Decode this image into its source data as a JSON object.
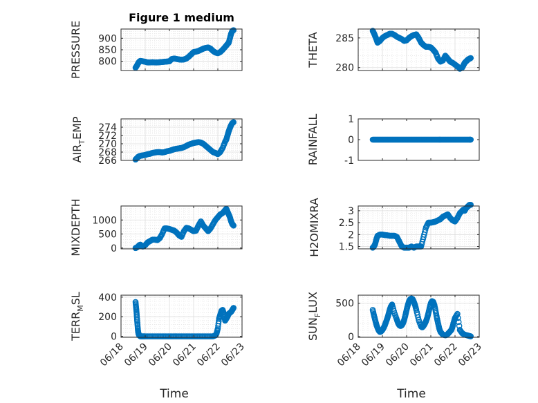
{
  "figure": {
    "xlabel": "Time"
  },
  "chart_data": [
    {
      "type": "scatter",
      "title": "Figure 1 medium",
      "ylabel": "PRESSURE",
      "ylabel_sub": "",
      "xlim": [
        "06/18",
        "06/23"
      ],
      "ylim": [
        760,
        940
      ],
      "yticks": [
        800,
        850,
        900
      ],
      "grid": true,
      "x": [
        18.6,
        18.65,
        18.7,
        18.75,
        18.8,
        18.9,
        19.0,
        19.1,
        19.2,
        19.3,
        19.4,
        19.5,
        19.6,
        19.7,
        19.8,
        19.9,
        20.0,
        20.1,
        20.2,
        20.3,
        20.4,
        20.5,
        20.6,
        20.7,
        20.8,
        20.9,
        21.0,
        21.1,
        21.2,
        21.3,
        21.4,
        21.5,
        21.6,
        21.7,
        21.8,
        21.9,
        22.0,
        22.1,
        22.2,
        22.3,
        22.35,
        22.4,
        22.45,
        22.5,
        22.55,
        22.6,
        22.65
      ],
      "y": [
        772,
        780,
        790,
        798,
        802,
        800,
        798,
        795,
        795,
        796,
        795,
        795,
        796,
        797,
        798,
        799,
        800,
        810,
        812,
        810,
        808,
        807,
        808,
        812,
        820,
        830,
        840,
        842,
        845,
        850,
        855,
        858,
        860,
        855,
        845,
        838,
        835,
        840,
        850,
        862,
        868,
        875,
        880,
        900,
        920,
        932,
        935
      ]
    },
    {
      "type": "scatter",
      "title": "",
      "ylabel": "THETA",
      "ylabel_sub": "",
      "xlim": [
        "06/18",
        "06/23"
      ],
      "ylim": [
        279.5,
        286.5
      ],
      "yticks": [
        280,
        285
      ],
      "grid": true,
      "x": [
        18.6,
        18.65,
        18.7,
        18.75,
        18.8,
        18.9,
        19.0,
        19.1,
        19.2,
        19.3,
        19.4,
        19.5,
        19.6,
        19.7,
        19.8,
        19.9,
        20.0,
        20.1,
        20.2,
        20.3,
        20.4,
        20.5,
        20.6,
        20.7,
        20.8,
        20.9,
        21.0,
        21.1,
        21.2,
        21.3,
        21.4,
        21.5,
        21.6,
        21.7,
        21.8,
        21.9,
        22.0,
        22.1,
        22.2,
        22.3,
        22.35,
        22.4,
        22.45,
        22.5,
        22.55,
        22.6,
        22.65
      ],
      "y": [
        286.2,
        285.8,
        285.3,
        284.8,
        284.2,
        284.5,
        285.0,
        285.3,
        285.5,
        285.7,
        285.7,
        285.5,
        285.2,
        285.0,
        284.8,
        284.5,
        284.6,
        285.0,
        285.3,
        285.5,
        285.6,
        285.0,
        284.2,
        283.8,
        283.5,
        283.5,
        283.4,
        283.0,
        282.5,
        281.5,
        281.0,
        281.2,
        282.0,
        281.5,
        281.0,
        280.8,
        280.5,
        280.2,
        279.8,
        280.0,
        280.4,
        280.8,
        281.0,
        281.2,
        281.4,
        281.5,
        281.6
      ]
    },
    {
      "type": "scatter",
      "title": "",
      "ylabel": "AIR",
      "ylabel_sub": "T",
      "ylabel_rest": "EMP",
      "xlim": [
        "06/18",
        "06/23"
      ],
      "ylim": [
        266,
        276
      ],
      "yticks": [
        266,
        268,
        270,
        272,
        274
      ],
      "grid": true,
      "x": [
        18.6,
        18.65,
        18.7,
        18.75,
        18.8,
        18.9,
        19.0,
        19.1,
        19.2,
        19.3,
        19.4,
        19.5,
        19.6,
        19.7,
        19.8,
        19.9,
        20.0,
        20.1,
        20.2,
        20.3,
        20.4,
        20.5,
        20.6,
        20.7,
        20.8,
        20.9,
        21.0,
        21.1,
        21.2,
        21.3,
        21.4,
        21.5,
        21.6,
        21.7,
        21.8,
        21.9,
        22.0,
        22.1,
        22.2,
        22.3,
        22.35,
        22.4,
        22.45,
        22.5,
        22.55,
        22.6,
        22.65
      ],
      "y": [
        266.2,
        266.5,
        266.8,
        267.0,
        267.1,
        267.2,
        267.3,
        267.5,
        267.6,
        267.8,
        267.9,
        268.0,
        268.0,
        267.9,
        268.0,
        268.2,
        268.3,
        268.5,
        268.7,
        268.8,
        268.9,
        269.0,
        269.2,
        269.5,
        269.8,
        270.0,
        270.2,
        270.3,
        270.4,
        270.3,
        270.0,
        269.5,
        269.0,
        268.5,
        268.0,
        267.8,
        267.5,
        268.0,
        269.0,
        270.5,
        271.0,
        272.0,
        273.0,
        273.8,
        274.5,
        275.0,
        275.2
      ]
    },
    {
      "type": "scatter",
      "title": "",
      "ylabel": "RAINFALL",
      "ylabel_sub": "",
      "xlim": [
        "06/18",
        "06/23"
      ],
      "ylim": [
        -1,
        1
      ],
      "yticks": [
        -1,
        0,
        1
      ],
      "grid": false,
      "x": [
        18.6,
        18.7,
        18.8,
        18.9,
        19.0,
        19.1,
        19.2,
        19.3,
        19.4,
        19.5,
        19.6,
        19.7,
        19.8,
        19.9,
        20.0,
        20.1,
        20.2,
        20.3,
        20.4,
        20.5,
        20.6,
        20.7,
        20.8,
        20.9,
        21.0,
        21.1,
        21.2,
        21.3,
        21.4,
        21.5,
        21.6,
        21.7,
        21.8,
        21.9,
        22.0,
        22.1,
        22.2,
        22.3,
        22.4,
        22.5,
        22.6,
        22.65
      ],
      "y": [
        0,
        0,
        0,
        0,
        0,
        0,
        0,
        0,
        0,
        0,
        0,
        0,
        0,
        0,
        0,
        0,
        0,
        0,
        0,
        0,
        0,
        0,
        0,
        0,
        0,
        0,
        0,
        0,
        0,
        0,
        0,
        0,
        0,
        0,
        0,
        0,
        0,
        0,
        0,
        0,
        0,
        0
      ]
    },
    {
      "type": "scatter",
      "title": "",
      "ylabel": "MIXDEPTH",
      "ylabel_sub": "",
      "xlim": [
        "06/18",
        "06/23"
      ],
      "ylim": [
        -30,
        1500
      ],
      "yticks": [
        0,
        500,
        1000
      ],
      "grid": true,
      "x": [
        18.6,
        18.65,
        18.7,
        18.75,
        18.8,
        18.9,
        19.0,
        19.1,
        19.2,
        19.3,
        19.4,
        19.5,
        19.6,
        19.7,
        19.8,
        19.9,
        20.0,
        20.1,
        20.2,
        20.3,
        20.4,
        20.5,
        20.6,
        20.7,
        20.8,
        20.9,
        21.0,
        21.1,
        21.2,
        21.3,
        21.4,
        21.5,
        21.6,
        21.7,
        21.8,
        21.9,
        22.0,
        22.1,
        22.2,
        22.3,
        22.35,
        22.4,
        22.45,
        22.5,
        22.55,
        22.6,
        22.65
      ],
      "y": [
        0,
        20,
        50,
        100,
        120,
        50,
        100,
        200,
        250,
        300,
        300,
        280,
        350,
        500,
        700,
        700,
        680,
        650,
        620,
        550,
        450,
        400,
        600,
        720,
        700,
        650,
        600,
        620,
        800,
        950,
        800,
        700,
        600,
        700,
        850,
        1000,
        1100,
        1200,
        1250,
        1350,
        1400,
        1300,
        1200,
        1100,
        950,
        850,
        800
      ]
    },
    {
      "type": "scatter",
      "title": "",
      "ylabel": "H2OMIXRA",
      "ylabel_sub": "",
      "xlim": [
        "06/18",
        "06/23"
      ],
      "ylim": [
        1.4,
        3.2
      ],
      "yticks": [
        1.5,
        2,
        2.5,
        3
      ],
      "grid": true,
      "x": [
        18.6,
        18.65,
        18.7,
        18.75,
        18.8,
        18.9,
        19.0,
        19.1,
        19.2,
        19.3,
        19.4,
        19.5,
        19.6,
        19.7,
        19.8,
        19.9,
        20.0,
        20.1,
        20.2,
        20.3,
        20.4,
        20.5,
        20.6,
        20.7,
        20.8,
        20.9,
        21.0,
        21.1,
        21.2,
        21.3,
        21.4,
        21.5,
        21.6,
        21.7,
        21.8,
        21.9,
        22.0,
        22.1,
        22.2,
        22.3,
        22.35,
        22.4,
        22.45,
        22.5,
        22.55,
        22.6,
        22.65
      ],
      "y": [
        1.45,
        1.5,
        1.6,
        1.8,
        1.95,
        2.0,
        2.0,
        1.98,
        1.97,
        1.95,
        1.95,
        1.95,
        1.9,
        1.7,
        1.5,
        1.45,
        1.45,
        1.45,
        1.5,
        1.45,
        1.5,
        1.5,
        1.5,
        1.9,
        2.3,
        2.5,
        2.5,
        2.52,
        2.55,
        2.6,
        2.65,
        2.75,
        2.8,
        2.85,
        2.7,
        2.6,
        2.55,
        2.7,
        2.9,
        3.0,
        3.05,
        3.0,
        3.1,
        3.15,
        3.2,
        3.25,
        3.25
      ]
    },
    {
      "type": "scatter",
      "title": "",
      "ylabel": "TERR",
      "ylabel_sub": "M",
      "ylabel_rest": "SL",
      "xlim": [
        "06/18",
        "06/23"
      ],
      "ylim": [
        -10,
        420
      ],
      "yticks": [
        0,
        200,
        400
      ],
      "grid": true,
      "x": [
        18.6,
        18.62,
        18.64,
        18.66,
        18.68,
        18.7,
        18.72,
        18.75,
        18.8,
        18.9,
        19.0,
        19.2,
        19.4,
        19.6,
        19.8,
        20.0,
        20.2,
        20.4,
        20.6,
        20.8,
        21.0,
        21.2,
        21.4,
        21.6,
        21.8,
        21.9,
        21.95,
        22.0,
        22.05,
        22.1,
        22.15,
        22.2,
        22.25,
        22.3,
        22.35,
        22.4,
        22.45,
        22.5,
        22.55,
        22.6,
        22.65
      ],
      "y": [
        350,
        300,
        250,
        180,
        120,
        60,
        30,
        10,
        0,
        0,
        0,
        0,
        0,
        0,
        0,
        0,
        0,
        0,
        0,
        0,
        0,
        0,
        0,
        0,
        0,
        10,
        30,
        80,
        180,
        220,
        260,
        270,
        230,
        160,
        180,
        200,
        230,
        240,
        250,
        270,
        290
      ]
    },
    {
      "type": "scatter",
      "title": "",
      "ylabel": "SUN",
      "ylabel_sub": "F",
      "ylabel_rest": "LUX",
      "xlim": [
        "06/18",
        "06/23"
      ],
      "ylim": [
        -10,
        620
      ],
      "yticks": [
        0,
        500
      ],
      "grid": true,
      "x": [
        18.6,
        18.65,
        18.7,
        18.75,
        18.8,
        18.85,
        18.9,
        18.95,
        19.0,
        19.05,
        19.1,
        19.15,
        19.2,
        19.25,
        19.3,
        19.35,
        19.4,
        19.5,
        19.6,
        19.65,
        19.7,
        19.75,
        19.8,
        19.85,
        19.9,
        19.95,
        20.0,
        20.05,
        20.1,
        20.15,
        20.2,
        20.25,
        20.3,
        20.35,
        20.4,
        20.5,
        20.6,
        20.65,
        20.7,
        20.75,
        20.8,
        20.85,
        20.9,
        20.95,
        21.0,
        21.05,
        21.1,
        21.15,
        21.2,
        21.25,
        21.3,
        21.35,
        21.4,
        21.5,
        21.6,
        21.65,
        21.7,
        21.75,
        21.8,
        21.85,
        21.9,
        21.95,
        22.0,
        22.1,
        22.2,
        22.3,
        22.4,
        22.5,
        22.6,
        22.65
      ],
      "y": [
        400,
        320,
        250,
        180,
        130,
        90,
        70,
        80,
        100,
        130,
        170,
        220,
        270,
        330,
        400,
        450,
        480,
        350,
        250,
        200,
        170,
        160,
        170,
        200,
        250,
        320,
        400,
        470,
        530,
        560,
        570,
        560,
        520,
        470,
        400,
        250,
        150,
        140,
        160,
        190,
        230,
        280,
        350,
        430,
        500,
        530,
        520,
        470,
        380,
        280,
        200,
        120,
        70,
        30,
        20,
        25,
        40,
        60,
        80,
        100,
        150,
        220,
        280,
        340,
        100,
        50,
        30,
        20,
        10,
        5
      ]
    }
  ]
}
